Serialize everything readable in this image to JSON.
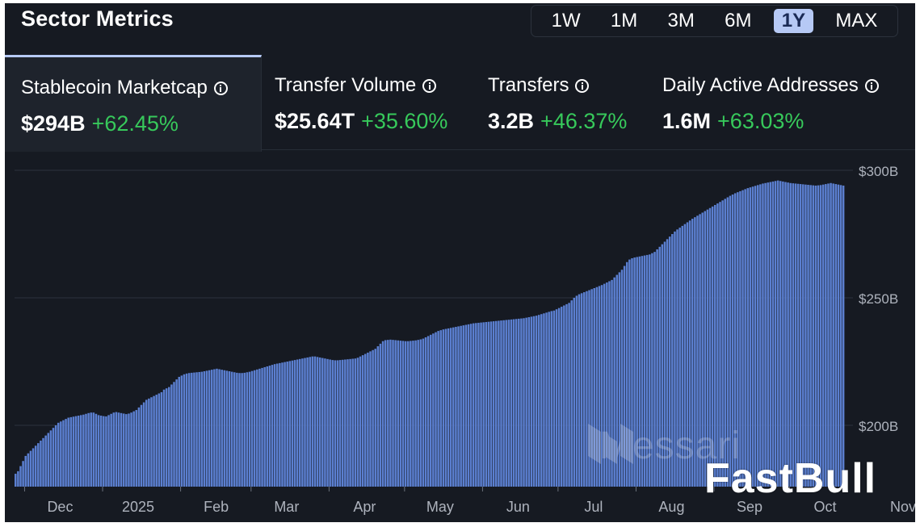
{
  "header": {
    "title": "Sector Metrics",
    "ranges": [
      "1W",
      "1M",
      "3M",
      "6M",
      "1Y",
      "MAX"
    ],
    "active_range": "1Y"
  },
  "metrics": [
    {
      "label": "Stablecoin Marketcap",
      "value": "$294B",
      "change": "+62.45%",
      "active": true
    },
    {
      "label": "Transfer Volume",
      "value": "$25.64T",
      "change": "+35.60%",
      "active": false
    },
    {
      "label": "Transfers",
      "value": "3.2B",
      "change": "+46.37%",
      "active": false
    },
    {
      "label": "Daily Active Addresses",
      "value": "1.6M",
      "change": "+63.03%",
      "active": false
    }
  ],
  "watermarks": {
    "messari": "Messari",
    "fastbull": "FastBull"
  },
  "colors": {
    "background": "#161a22",
    "bar": "#5b7fd0",
    "bar_edge": "#4a6bb8",
    "positive": "#37c95b",
    "active_tab": "#b6c9f5",
    "grid": "#2c323d"
  },
  "chart_data": {
    "type": "bar",
    "title": "",
    "xlabel": "",
    "ylabel": "",
    "ylim": [
      176,
      300
    ],
    "y_ticks": [
      {
        "value": 300,
        "label": "$300B"
      },
      {
        "value": 250,
        "label": "$250B"
      },
      {
        "value": 200,
        "label": "$200B"
      }
    ],
    "x_ticks": [
      {
        "label": "Dec",
        "index": 4
      },
      {
        "label": "2025",
        "index": 35
      },
      {
        "label": "Feb",
        "index": 66
      },
      {
        "label": "Mar",
        "index": 94
      },
      {
        "label": "Apr",
        "index": 125
      },
      {
        "label": "May",
        "index": 155
      },
      {
        "label": "Jun",
        "index": 186
      },
      {
        "label": "Jul",
        "index": 216
      },
      {
        "label": "Aug",
        "index": 247
      },
      {
        "label": "Sep",
        "index": 278
      },
      {
        "label": "Oct",
        "index": 308
      },
      {
        "label": "Nov",
        "index": 339
      }
    ],
    "series": [
      {
        "values": [
          181,
          182,
          184,
          186,
          188,
          189,
          190,
          191,
          192,
          193,
          194,
          195,
          196,
          197,
          198,
          199,
          200,
          201,
          201.5,
          202,
          202.5,
          203,
          203.2,
          203.4,
          203.6,
          203.8,
          204,
          204.2,
          204.5,
          204.8,
          205,
          205,
          204.5,
          204,
          203.8,
          203.6,
          203.5,
          204,
          204.5,
          205,
          205.2,
          205,
          204.8,
          204.6,
          204.4,
          204.6,
          205,
          205.5,
          206,
          207,
          208,
          209,
          210,
          210.5,
          211,
          211.5,
          212,
          212.5,
          213,
          214,
          214.5,
          215,
          216,
          217,
          218,
          219,
          219.5,
          220,
          220.3,
          220.5,
          220.6,
          220.7,
          220.8,
          220.9,
          221,
          221.2,
          221.4,
          221.6,
          221.8,
          222,
          222.2,
          222,
          221.8,
          221.6,
          221.4,
          221.2,
          221,
          220.8,
          220.6,
          220.5,
          220.5,
          220.6,
          220.8,
          221,
          221.3,
          221.6,
          221.9,
          222.2,
          222.5,
          222.8,
          223.1,
          223.4,
          223.7,
          224,
          224.2,
          224.4,
          224.6,
          224.8,
          225,
          225.2,
          225.4,
          225.6,
          225.8,
          226,
          226.2,
          226.4,
          226.6,
          226.8,
          227,
          227,
          226.8,
          226.6,
          226.4,
          226.2,
          226,
          225.8,
          225.6,
          225.5,
          225.5,
          225.6,
          225.7,
          225.8,
          225.9,
          226,
          226.1,
          226.2,
          226.5,
          227,
          227.5,
          228,
          228.5,
          229,
          229.5,
          230,
          231,
          232,
          233,
          233.4,
          233.5,
          233.6,
          233.5,
          233.4,
          233.3,
          233.2,
          233.1,
          233,
          233,
          233.1,
          233.2,
          233.3,
          233.5,
          233.7,
          234,
          234.5,
          235,
          235.5,
          236,
          236.5,
          237,
          237.3,
          237.6,
          237.8,
          238,
          238.2,
          238.4,
          238.6,
          238.8,
          239,
          239.2,
          239.4,
          239.6,
          239.8,
          240,
          240.1,
          240.2,
          240.3,
          240.4,
          240.5,
          240.6,
          240.7,
          240.8,
          240.9,
          241,
          241.1,
          241.2,
          241.3,
          241.4,
          241.5,
          241.6,
          241.7,
          241.8,
          241.9,
          242,
          242.2,
          242.4,
          242.6,
          242.8,
          243,
          243.3,
          243.6,
          243.9,
          244.2,
          244.5,
          244.8,
          245,
          245.5,
          246,
          246.5,
          247,
          247.5,
          248,
          249,
          250,
          250.8,
          251.4,
          251.8,
          252.2,
          252.6,
          253,
          253.4,
          253.8,
          254.2,
          254.6,
          255,
          255.5,
          256,
          256.5,
          257,
          258,
          259,
          260,
          261,
          262.5,
          264,
          265,
          265.5,
          265.8,
          266,
          266.2,
          266.4,
          266.6,
          266.8,
          267,
          267.5,
          268,
          269,
          270,
          271,
          272,
          273,
          274,
          275,
          276,
          276.8,
          277.5,
          278.2,
          278.9,
          279.6,
          280.3,
          281,
          281.6,
          282.2,
          282.8,
          283.4,
          284,
          284.6,
          285.2,
          285.8,
          286.4,
          287,
          287.6,
          288.2,
          288.8,
          289.4,
          290,
          290.5,
          291,
          291.4,
          291.8,
          292.2,
          292.6,
          293,
          293.3,
          293.6,
          293.9,
          294.2,
          294.5,
          294.8,
          295,
          295.2,
          295.4,
          295.6,
          295.8,
          296,
          295.8,
          295.6,
          295.4,
          295.2,
          295,
          294.9,
          294.8,
          294.7,
          294.6,
          294.5,
          294.4,
          294.3,
          294.2,
          294.1,
          294,
          294.1,
          294.2,
          294.4,
          294.6,
          294.8,
          295,
          294.8,
          294.6,
          294.4,
          294.2,
          294
        ]
      }
    ],
    "grid": true,
    "legend": "none"
  }
}
